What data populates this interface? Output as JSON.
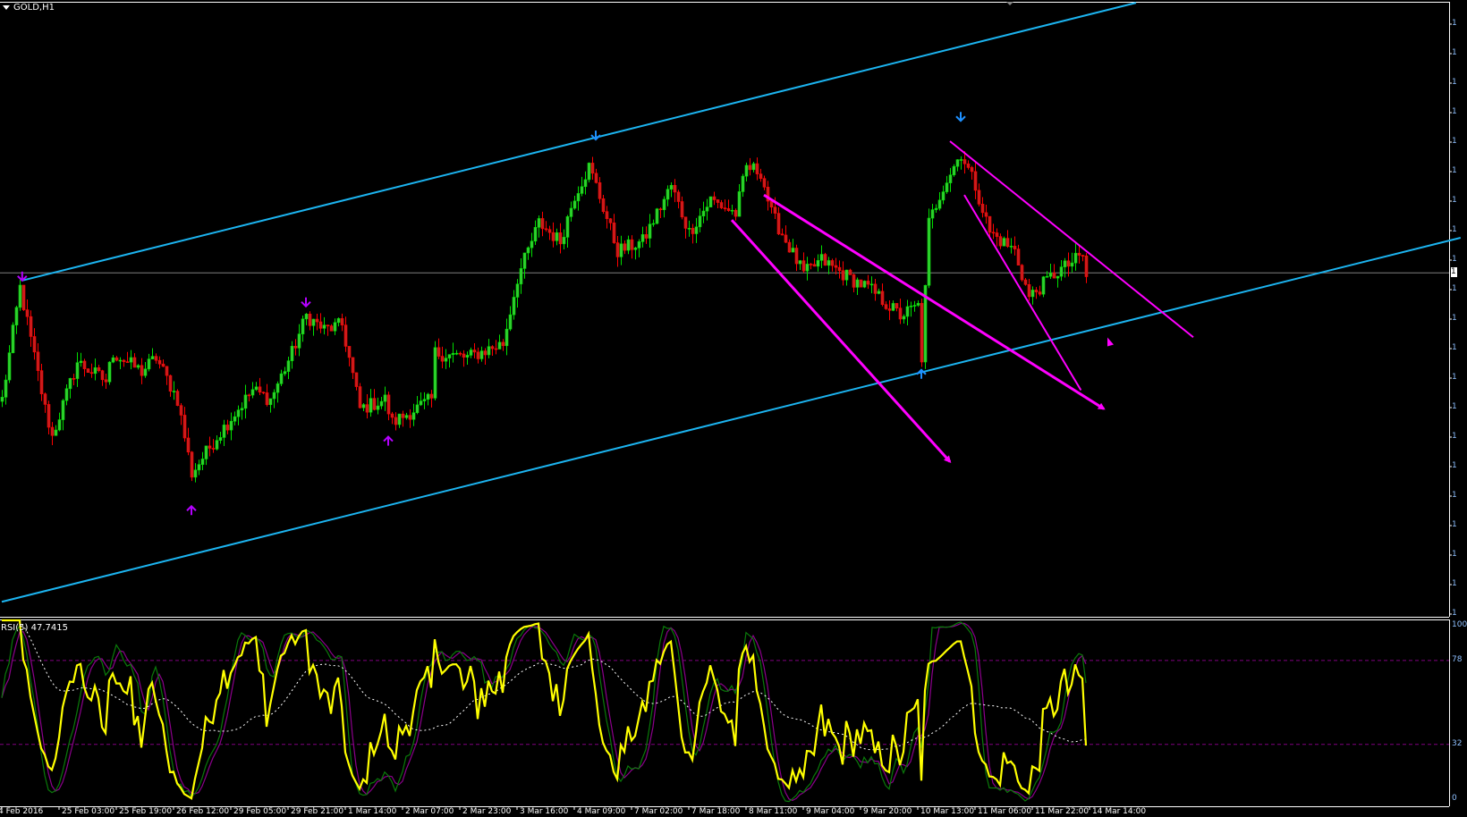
{
  "window": {
    "title": "GOLD,H1"
  },
  "indicator": {
    "label": "RSI(5) 47.7415",
    "levels": [
      78,
      32
    ],
    "level_labels": [
      "100",
      "78",
      "32",
      "0"
    ]
  },
  "price_axis": {
    "tick_label": "1",
    "current_price_label": "1"
  },
  "colors": {
    "background": "#000000",
    "bull": "#32CD32",
    "bear": "#FF0000",
    "channel": "#1CB4F0",
    "pattern": "#FF00FF",
    "rsi": "#FFFF00",
    "signal_green": "#0A7A0A",
    "signal_purple": "#8B008B",
    "rsi_ma": "#FFFFFF",
    "level": "#800080",
    "price_line": "#808080"
  },
  "chart_data": {
    "type": "candlestick",
    "symbol": "GOLD",
    "timeframe": "H1",
    "x_tick_labels": [
      "4 Feb 2016",
      "25 Feb 03:00",
      "25 Feb 19:00",
      "26 Feb 12:00",
      "29 Feb 05:00",
      "29 Feb 21:00",
      "1 Mar 14:00",
      "2 Mar 07:00",
      "2 Mar 23:00",
      "3 Mar 16:00",
      "4 Mar 09:00",
      "7 Mar 02:00",
      "7 Mar 18:00",
      "8 Mar 11:00",
      "9 Mar 04:00",
      "9 Mar 20:00",
      "10 Mar 13:00",
      "11 Mar 06:00",
      "11 Mar 22:00",
      "14 Mar 14:00"
    ],
    "bars_per_tick": 16,
    "close_waypoints": [
      [
        0,
        1227.7
      ],
      [
        5,
        1254.1
      ],
      [
        12,
        1225.5
      ],
      [
        14,
        1218.9
      ],
      [
        21,
        1236.5
      ],
      [
        29,
        1232.1
      ],
      [
        31,
        1238.7
      ],
      [
        39,
        1234.3
      ],
      [
        43,
        1237.6
      ],
      [
        49,
        1227.7
      ],
      [
        53,
        1210.2
      ],
      [
        60,
        1218.9
      ],
      [
        70,
        1229.9
      ],
      [
        75,
        1227.7
      ],
      [
        81,
        1238.7
      ],
      [
        85,
        1247.5
      ],
      [
        90,
        1244.2
      ],
      [
        95,
        1245.3
      ],
      [
        100,
        1225.5
      ],
      [
        107,
        1227.7
      ],
      [
        109,
        1222.2
      ],
      [
        120,
        1227.7
      ],
      [
        121,
        1238.7
      ],
      [
        130,
        1237.6
      ],
      [
        140,
        1240.9
      ],
      [
        144,
        1256.3
      ],
      [
        150,
        1269.4
      ],
      [
        156,
        1265.0
      ],
      [
        160,
        1276.0
      ],
      [
        164,
        1282.6
      ],
      [
        166,
        1278.2
      ],
      [
        172,
        1262.8
      ],
      [
        179,
        1265.0
      ],
      [
        187,
        1278.2
      ],
      [
        192,
        1267.2
      ],
      [
        198,
        1274.9
      ],
      [
        205,
        1271.6
      ],
      [
        208,
        1282.6
      ],
      [
        212,
        1281.5
      ],
      [
        215,
        1271.6
      ],
      [
        224,
        1257.3
      ],
      [
        229,
        1260.6
      ],
      [
        237,
        1256.3
      ],
      [
        242,
        1254.1
      ],
      [
        251,
        1247.5
      ],
      [
        256,
        1249.7
      ],
      [
        257,
        1237.6
      ],
      [
        259,
        1269.4
      ],
      [
        263,
        1278.2
      ],
      [
        268,
        1285.9
      ],
      [
        272,
        1278.2
      ],
      [
        276,
        1267.2
      ],
      [
        283,
        1262.8
      ],
      [
        287,
        1251.8
      ],
      [
        294,
        1257.3
      ],
      [
        302,
        1261.7
      ],
      [
        303,
        1256.7
      ]
    ],
    "current_price": 1257.6,
    "trendlines": [
      {
        "kind": "channel-upper",
        "color": "channel",
        "from": [
          5.7,
          1255.8
        ],
        "to": [
          317,
          1321.4
        ],
        "arrow": false
      },
      {
        "kind": "channel-lower",
        "color": "channel",
        "from": [
          0,
          1179.9
        ],
        "to": [
          407.7,
          1265.9
        ],
        "arrow": false
      },
      {
        "kind": "pattern",
        "color": "pattern",
        "from": [
          204,
          1270.1
        ],
        "to": [
          265,
          1213.0
        ],
        "arrow": true
      },
      {
        "kind": "pattern",
        "color": "pattern",
        "from": [
          213,
          1276.0
        ],
        "to": [
          308,
          1225.5
        ],
        "arrow": true
      },
      {
        "kind": "pattern",
        "color": "pattern",
        "from": [
          265,
          1288.7
        ],
        "to": [
          333,
          1242.4
        ],
        "arrow": false
      },
      {
        "kind": "pattern",
        "color": "pattern",
        "from": [
          269,
          1276.0
        ],
        "to": [
          301.6,
          1229.9
        ],
        "arrow": false
      }
    ],
    "fractal_arrows": [
      {
        "bar": 5.7,
        "price": 1255.8,
        "dir": "down",
        "color": "#B400FF"
      },
      {
        "bar": 85,
        "price": 1249.7,
        "dir": "down",
        "color": "#B400FF"
      },
      {
        "bar": 108,
        "price": 1218.9,
        "dir": "up",
        "color": "#B400FF"
      },
      {
        "bar": 53,
        "price": 1202.5,
        "dir": "up",
        "color": "#B400FF"
      },
      {
        "bar": 166,
        "price": 1289.1,
        "dir": "down",
        "color": "#1E90FF"
      },
      {
        "bar": 268,
        "price": 1293.5,
        "dir": "down",
        "color": "#1E90FF"
      },
      {
        "bar": 257,
        "price": 1234.7,
        "dir": "up",
        "color": "#1E90FF"
      }
    ],
    "marker_triangle": {
      "bar": 309,
      "price": 1241.3
    },
    "rsi_period": 5,
    "rsi_last": 47.7415,
    "rsi_ylim": [
      0,
      100
    ]
  }
}
